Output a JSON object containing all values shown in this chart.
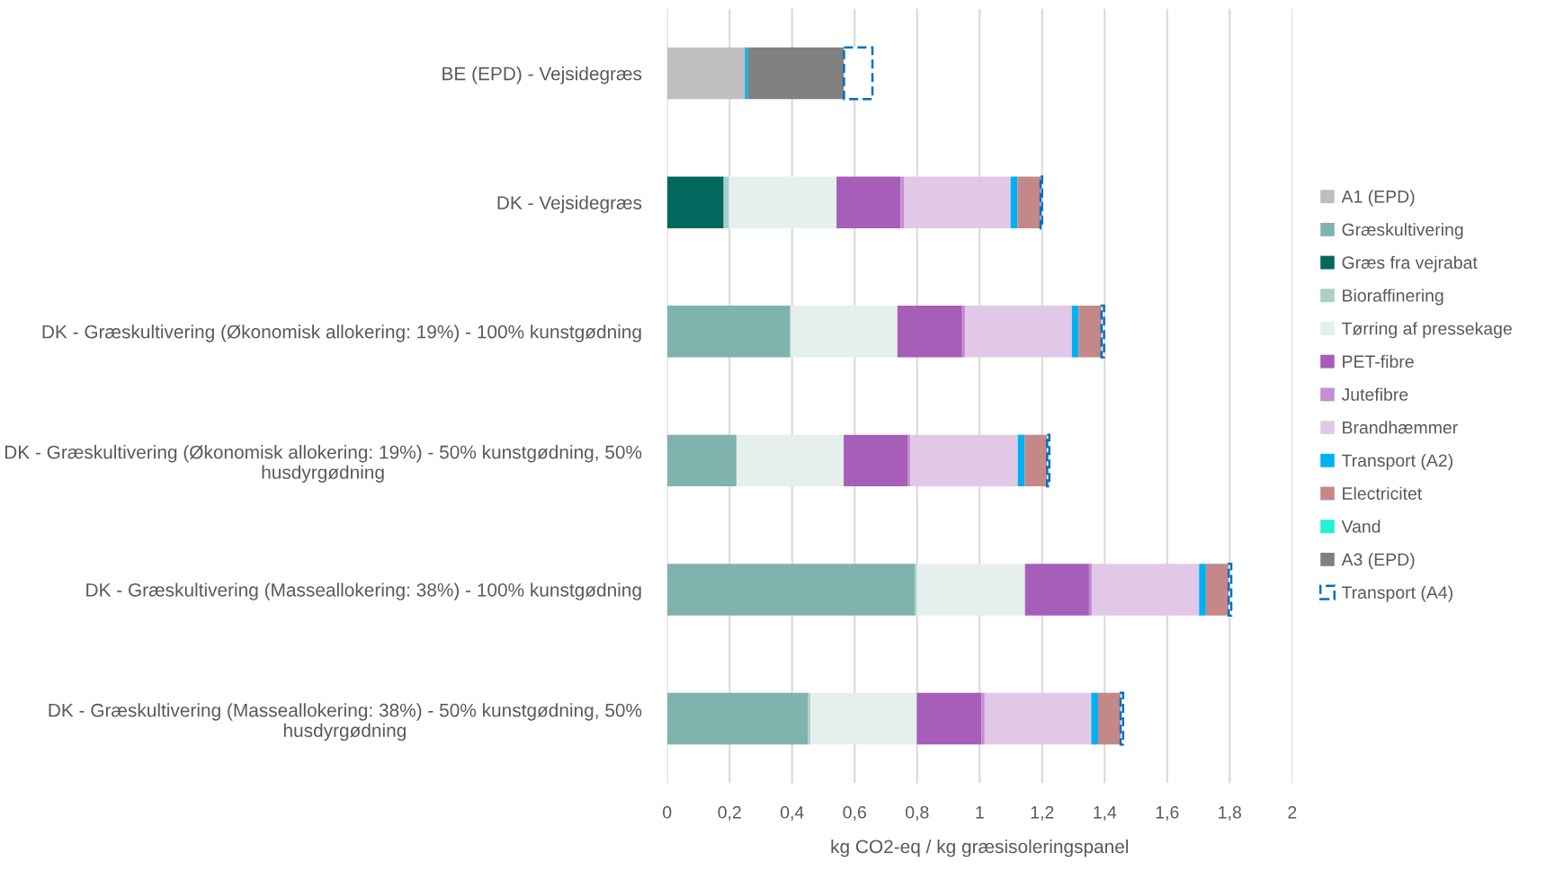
{
  "chart_data": {
    "type": "bar",
    "orientation": "horizontal",
    "stacked": true,
    "categories": [
      "BE (EPD) - Vejsidegræs",
      "DK - Vejsidegræs",
      "DK - Græskultivering (Økonomisk allokering: 19%) - 100% kunstgødning",
      "DK - Græskultivering (Økonomisk allokering: 19%) - 50% kunstgødning, 50% husdyrgødning",
      "DK - Græskultivering (Masseallokering: 38%) - 100% kunstgødning",
      "DK - Græskultivering (Masseallokering: 38%) - 50% kunstgødning, 50% husdyrgødning"
    ],
    "series": [
      {
        "name": "A1 (EPD)",
        "color": "#bfbfbf",
        "values": [
          0.249,
          0,
          0,
          0,
          0,
          0
        ]
      },
      {
        "name": "Græskultivering",
        "color": "#80b3ad",
        "values": [
          0,
          0,
          0.392,
          0.222,
          0.793,
          0.45
        ]
      },
      {
        "name": "Græs fra vejrabat",
        "color": "#00685d",
        "values": [
          0,
          0.181,
          0,
          0,
          0,
          0
        ]
      },
      {
        "name": "Bioraffinering",
        "color": "#a9d0c9",
        "values": [
          0,
          0.017,
          0.003,
          null,
          0.006,
          0.008
        ]
      },
      {
        "name": "Tørring af pressekage",
        "color": "#e5efed",
        "values": [
          0,
          0.344,
          0.342,
          0.343,
          0.346,
          0.341
        ]
      },
      {
        "name": "PET-fibre",
        "color": "#a65eb9",
        "values": [
          0,
          0.205,
          0.207,
          0.206,
          0.205,
          0.207
        ]
      },
      {
        "name": "Jutefibre",
        "color": "#c58fd4",
        "values": [
          0,
          0.012,
          0.01,
          0.008,
          0.01,
          0.01
        ]
      },
      {
        "name": "Brandhæmmer",
        "color": "#e1c8e7",
        "values": [
          0,
          0.34,
          0.341,
          0.343,
          0.342,
          0.341
        ]
      },
      {
        "name": "Transport (A2)",
        "color": "#00b0f0",
        "values": [
          0.01,
          0.022,
          0.022,
          0.022,
          0.022,
          0.022
        ]
      },
      {
        "name": "Electricitet",
        "color": "#c48888",
        "values": [
          0,
          0.074,
          0.073,
          0.072,
          0.073,
          0.072
        ]
      },
      {
        "name": "Vand",
        "color": "#22f0d8",
        "values": [
          0,
          0,
          0,
          0,
          0,
          0
        ]
      },
      {
        "name": "A3 (EPD)",
        "color": "#808080",
        "values": [
          0.307,
          0,
          0,
          0,
          0,
          0
        ]
      },
      {
        "name": "Transport (A4)",
        "color": "#0070c0",
        "line_style": "dashed",
        "values": [
          0.091,
          0.005,
          0.008,
          0.007,
          0.008,
          0.008
        ]
      }
    ],
    "xlabel": "kg CO2-eq / kg græsisoleringspanel",
    "xlim": [
      0,
      2
    ],
    "xticks": [
      0,
      {
        "value": 0.2,
        "label": "0,2"
      },
      {
        "value": 0.4,
        "label": "0,4"
      },
      {
        "value": 0.6,
        "label": "0,6"
      },
      {
        "value": 0.8,
        "label": "0,8"
      },
      1,
      {
        "value": 1.2,
        "label": "1,2"
      },
      {
        "value": 1.4,
        "label": "1,4"
      },
      {
        "value": 1.6,
        "label": "1,6"
      },
      {
        "value": 1.8,
        "label": "1,8"
      },
      2
    ],
    "grid": "x",
    "legend": "right"
  }
}
